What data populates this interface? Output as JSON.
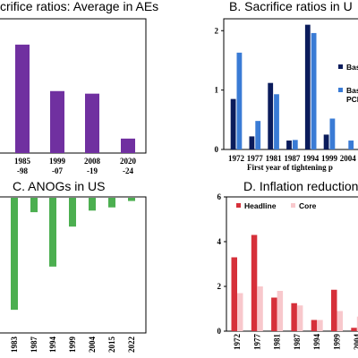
{
  "panels": {
    "a_title": "crifice ratios: Average in AEs",
    "b_title": "B. Sacrifice ratios in U",
    "c_title": "C. ANOGs in US",
    "d_title": "D. Inflation reduction in"
  },
  "colors": {
    "purple": "#7030a0",
    "dark_blue": "#0b1c5c",
    "light_blue": "#3a7bd5",
    "green": "#4caf50",
    "red": "#d6303a",
    "pink": "#f8c8cc"
  },
  "chart_data": [
    {
      "id": "A",
      "type": "bar",
      "title": "crifice ratios: Average in AEs",
      "categories": [
        [
          "",
          ""
        ],
        [
          "1985",
          "-98"
        ],
        [
          "1999",
          "-07"
        ],
        [
          "2008",
          "-19"
        ],
        [
          "2020",
          "-24"
        ]
      ],
      "values": [
        null,
        2.1,
        1.2,
        1.15,
        0.28
      ],
      "ylim": [
        0,
        2.6
      ]
    },
    {
      "id": "B",
      "type": "bar",
      "title": "B. Sacrifice ratios in U",
      "categories": [
        "1972",
        "1977",
        "1981",
        "1987",
        "1994",
        "1999",
        "2004"
      ],
      "series": [
        {
          "name": "Baseli",
          "values": [
            0.85,
            0.22,
            1.12,
            0.15,
            2.1,
            0.25,
            null
          ]
        },
        {
          "name": "Basel PCE",
          "values": [
            1.63,
            0.48,
            0.93,
            0.16,
            1.96,
            0.52,
            0.15
          ]
        }
      ],
      "xlabel": "First year of tightening p",
      "yticks": [
        "0",
        "1",
        "2"
      ],
      "ylim": [
        0,
        2.2
      ],
      "legend": "right"
    },
    {
      "id": "C",
      "type": "bar",
      "title": "C. ANOGs in US",
      "categories": [
        "",
        "1983",
        "1987",
        "1994",
        "1999",
        "2004",
        "2015",
        "2022"
      ],
      "values": [
        -0.1,
        -7.0,
        -0.9,
        -4.3,
        -1.8,
        -0.8,
        -0.6,
        -0.2
      ],
      "ylim": [
        -8,
        0
      ]
    },
    {
      "id": "D",
      "type": "bar",
      "title": "D. Inflation reduction in",
      "categories": [
        "1972",
        "1977",
        "1981",
        "1987",
        "1994",
        "1999",
        "2004"
      ],
      "series": [
        {
          "name": "Headline",
          "values": [
            3.3,
            4.3,
            1.5,
            1.25,
            0.5,
            1.85,
            0.15
          ]
        },
        {
          "name": "Core",
          "values": [
            1.7,
            2.0,
            1.8,
            1.15,
            0.5,
            0.9,
            0.65
          ]
        }
      ],
      "yticks": [
        "0",
        "2",
        "4",
        "6"
      ],
      "ylim": [
        0,
        6
      ],
      "legend": "top-left"
    }
  ]
}
